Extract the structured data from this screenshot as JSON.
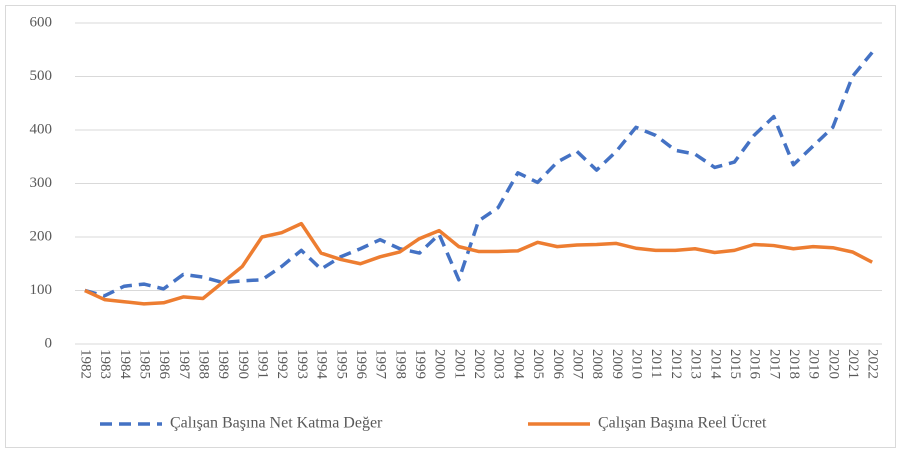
{
  "chart_data": {
    "type": "line",
    "categories": [
      "1982",
      "1983",
      "1984",
      "1985",
      "1986",
      "1987",
      "1988",
      "1989",
      "1990",
      "1991",
      "1992",
      "1993",
      "1994",
      "1995",
      "1996",
      "1997",
      "1998",
      "1999",
      "2000",
      "2001",
      "2002",
      "2003",
      "2004",
      "2005",
      "2006",
      "2007",
      "2008",
      "2009",
      "2010",
      "2011",
      "2012",
      "2013",
      "2014",
      "2015",
      "2016",
      "2017",
      "2018",
      "2019",
      "2020",
      "2021",
      "2022"
    ],
    "series": [
      {
        "name": "Çalışan Başına Net Katma Değer",
        "color": "#4472c4",
        "dash": true,
        "values": [
          100,
          90,
          108,
          112,
          103,
          130,
          125,
          115,
          118,
          120,
          145,
          175,
          140,
          163,
          178,
          195,
          178,
          170,
          205,
          120,
          230,
          255,
          320,
          302,
          340,
          360,
          325,
          360,
          405,
          390,
          362,
          355,
          330,
          340,
          390,
          425,
          335,
          370,
          405,
          500,
          545
        ]
      },
      {
        "name": "Çalışan Başına Reel Ücret",
        "color": "#ed7d31",
        "dash": false,
        "values": [
          100,
          83,
          79,
          75,
          77,
          88,
          85,
          115,
          145,
          200,
          208,
          225,
          170,
          158,
          150,
          163,
          172,
          197,
          212,
          182,
          173,
          173,
          174,
          190,
          182,
          185,
          186,
          188,
          179,
          175,
          175,
          178,
          171,
          175,
          186,
          184,
          178,
          182,
          180,
          172,
          153
        ]
      }
    ],
    "ylim": [
      0,
      600
    ],
    "yticks": [
      0,
      100,
      200,
      300,
      400,
      500,
      600
    ],
    "grid": true
  }
}
